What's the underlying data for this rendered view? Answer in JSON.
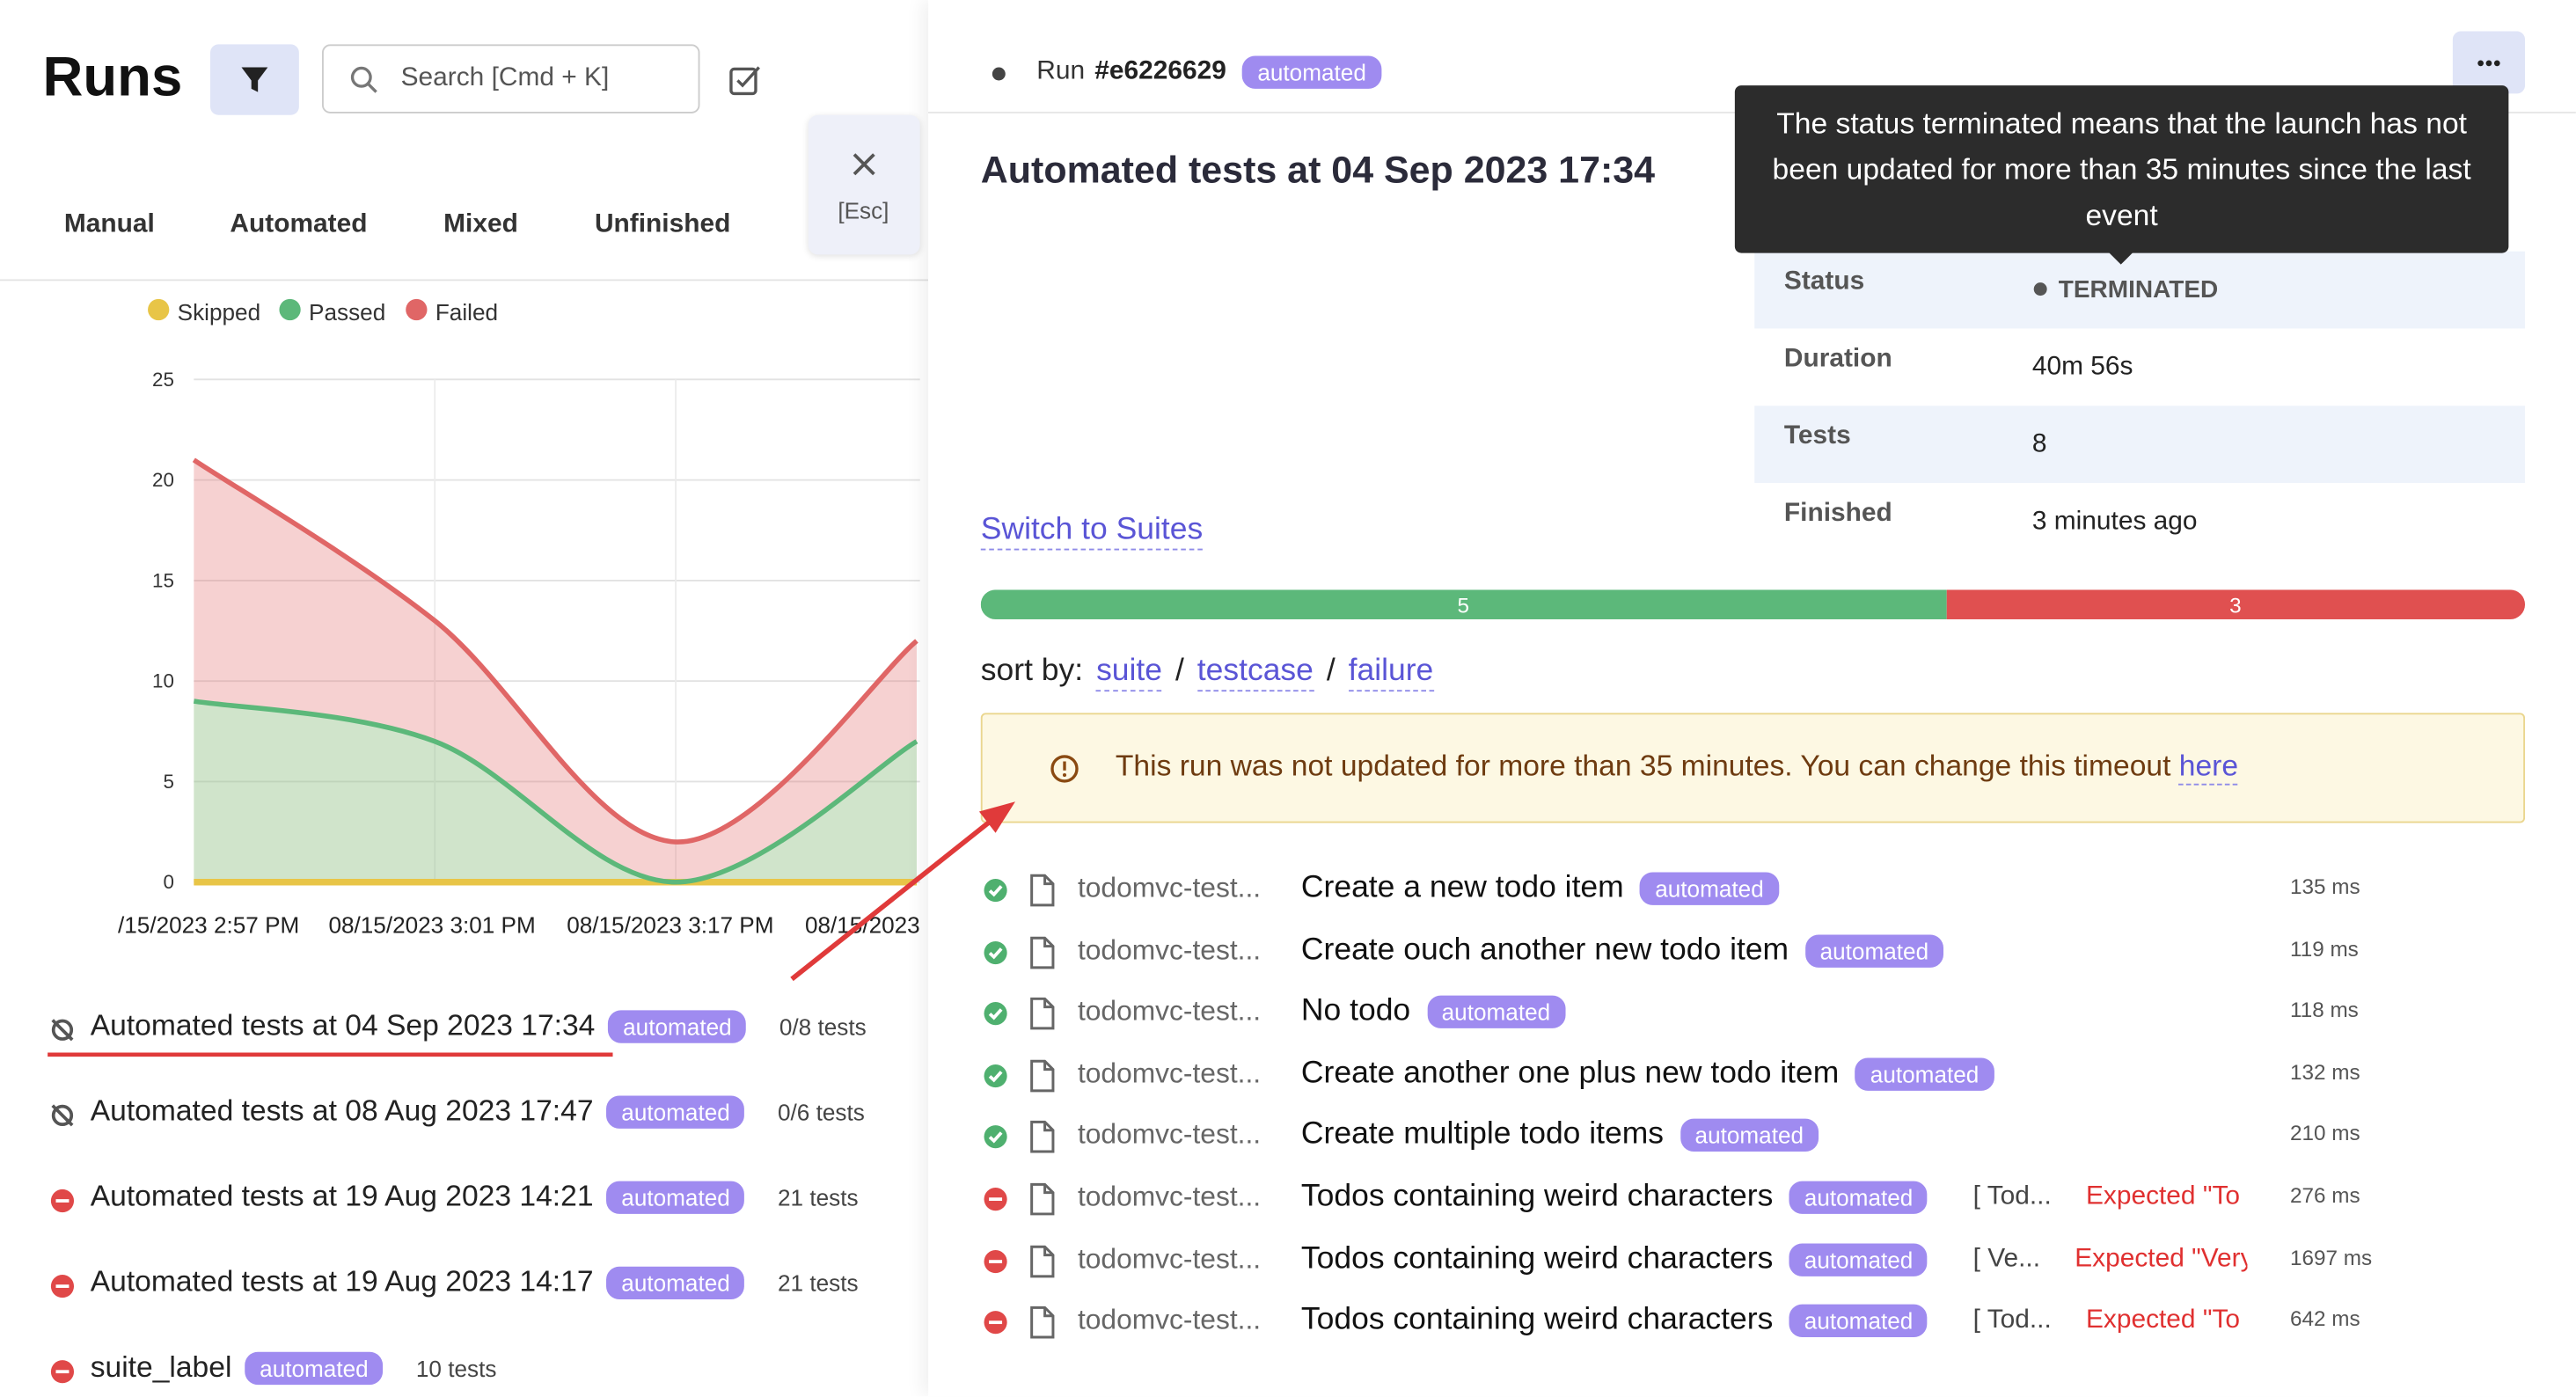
{
  "sidebar": {
    "title": "Runs",
    "search_placeholder": "Search [Cmd + K]",
    "tabs": [
      "Manual",
      "Automated",
      "Mixed",
      "Unfinished"
    ],
    "chart": {
      "type": "area",
      "stacked": true,
      "grid": true,
      "series": [
        {
          "name": "Skipped",
          "color": "#e8c547",
          "values": [
            0,
            0,
            0,
            0
          ]
        },
        {
          "name": "Passed",
          "color": "#5cb87a",
          "values": [
            9,
            7,
            0,
            7
          ]
        },
        {
          "name": "Failed",
          "color": "#e06666",
          "values": [
            12,
            6,
            2,
            5
          ]
        }
      ],
      "categories": [
        "/15/2023 2:57 PM",
        "08/15/2023 3:01 PM",
        "08/15/2023 3:17 PM",
        "08/15/2023"
      ],
      "ylim": [
        0,
        25
      ],
      "yticks": [
        0,
        5,
        10,
        15,
        20,
        25
      ]
    },
    "runs": [
      {
        "title": "Automated tests at 04 Sep 2023 17:34",
        "badge": "automated",
        "count": "0/8 tests",
        "status": "terminated"
      },
      {
        "title": "Automated tests at 08 Aug 2023 17:47",
        "badge": "automated",
        "count": "0/6 tests",
        "status": "terminated"
      },
      {
        "title": "Automated tests at 19 Aug 2023 14:21",
        "badge": "automated",
        "count": "21 tests",
        "status": "failed"
      },
      {
        "title": "Automated tests at 19 Aug 2023 14:17",
        "badge": "automated",
        "count": "21 tests",
        "status": "failed"
      },
      {
        "title": "suite_label",
        "badge": "automated",
        "count": "10 tests",
        "status": "failed"
      }
    ]
  },
  "close_hint": "[Esc]",
  "detail": {
    "run_label": "Run",
    "run_id": "#e6226629",
    "badge": "automated",
    "title": "Automated tests at 04 Sep 2023 17:34",
    "tooltip": "The status terminated means that the launch has not been updated for more than 35 minutes since the last event",
    "info": [
      [
        "Status",
        "TERMINATED"
      ],
      [
        "Duration",
        "40m 56s"
      ],
      [
        "Tests",
        8
      ],
      [
        "Finished",
        "3 minutes ago"
      ]
    ],
    "switch_link": "Switch to Suites",
    "progress": [
      {
        "value": 5,
        "color": "#5cb87a"
      },
      {
        "value": 3,
        "color": "#e05050"
      }
    ],
    "sort_label": "sort by:",
    "sort_separator": "/",
    "sort_options": [
      "suite",
      "testcase",
      "failure"
    ],
    "warning": "This run was not updated for more than 35 minutes. You can change this timeout",
    "warning_link": "here",
    "tests": [
      {
        "status": "passed",
        "file": "todomvc-test...",
        "title": "Create a new todo item",
        "badge": "automated",
        "time": "135 ms"
      },
      {
        "status": "passed",
        "file": "todomvc-test...",
        "title": "Create ouch another new todo item",
        "badge": "automated",
        "time": "119 ms"
      },
      {
        "status": "passed",
        "file": "todomvc-test...",
        "title": "No todo",
        "badge": "automated",
        "time": "118 ms"
      },
      {
        "status": "passed",
        "file": "todomvc-test...",
        "title": "Create another one plus new todo item",
        "badge": "automated",
        "time": "132 ms"
      },
      {
        "status": "passed",
        "file": "todomvc-test...",
        "title": "Create multiple todo items",
        "badge": "automated",
        "time": "210 ms"
      },
      {
        "status": "failed",
        "file": "todomvc-test...",
        "title": "Todos containing weird characters",
        "badge": "automated",
        "error_file": "[ Tod...",
        "error": "Expected \"To",
        "time": "276 ms"
      },
      {
        "status": "failed",
        "file": "todomvc-test...",
        "title": "Todos containing weird characters",
        "badge": "automated",
        "error_file": "[ Ve...",
        "error": "Expected \"Very",
        "time": "1697 ms"
      },
      {
        "status": "failed",
        "file": "todomvc-test...",
        "title": "Todos containing weird characters",
        "badge": "automated",
        "error_file": "[ Tod...",
        "error": "Expected \"To",
        "time": "642 ms"
      }
    ]
  }
}
